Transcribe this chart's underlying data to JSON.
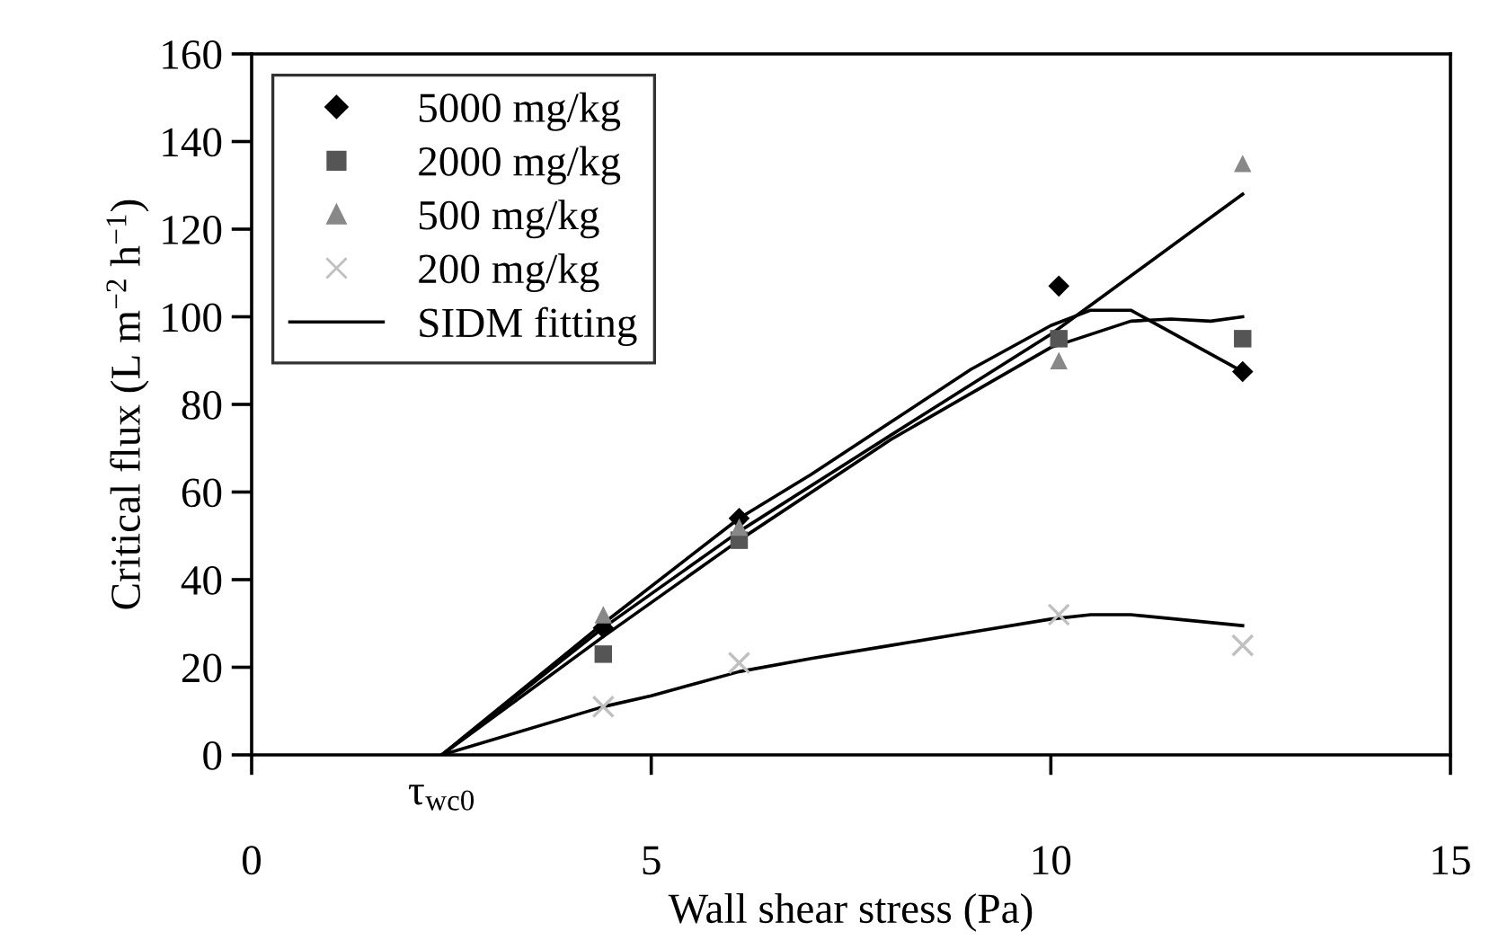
{
  "chart_data": {
    "type": "scatter",
    "xlabel": "Wall shear stress (Pa)",
    "ylabel": "Critical flux (L m$^{−2}$ h$^{−1}$)",
    "xlim": [
      0,
      15
    ],
    "xticks": [
      0,
      5,
      10,
      15
    ],
    "ylim": [
      0,
      160
    ],
    "yticks": [
      0,
      20,
      40,
      60,
      80,
      100,
      120,
      140,
      160
    ],
    "grid": false,
    "legend": "top left",
    "annotations": [
      {
        "text": "τ$_{wc0}$",
        "x": 2.38,
        "y": 0
      }
    ],
    "series": [
      {
        "name": "5000 mg/kg",
        "marker": "diamond",
        "color": "#000000",
        "x": [
          4.4,
          6.1,
          10.1,
          12.4
        ],
        "values": [
          29,
          54,
          107,
          87.5
        ]
      },
      {
        "name": "2000 mg/kg",
        "marker": "square",
        "color": "#555555",
        "x": [
          4.4,
          6.1,
          10.1,
          12.4
        ],
        "values": [
          23,
          49,
          95,
          95
        ]
      },
      {
        "name": "500 mg/kg",
        "marker": "triangle",
        "color": "#888888",
        "x": [
          4.4,
          6.1,
          10.1,
          12.4
        ],
        "values": [
          32,
          52,
          90,
          135
        ]
      },
      {
        "name": "200 mg/kg",
        "marker": "cross",
        "color": "#c0c0c0",
        "x": [
          4.4,
          6.1,
          10.1,
          12.4
        ],
        "values": [
          11,
          21,
          32,
          25
        ]
      },
      {
        "name": "SIDM fitting",
        "type": "line",
        "marker": "none",
        "color": "#000000",
        "x": [
          2.38,
          4.4,
          6.1,
          7,
          8,
          9,
          10,
          10.5,
          11,
          12.4
        ],
        "values": [
          0,
          30,
          54,
          64,
          76,
          88,
          98,
          101.5,
          101.5,
          87.5
        ]
      },
      {
        "type": "line",
        "marker": "none",
        "color": "#000000",
        "x": [
          2.38,
          4.4,
          6.1,
          8,
          10,
          11,
          11.5,
          12,
          12.4
        ],
        "values": [
          0,
          27,
          49,
          72,
          93,
          99,
          99.5,
          99,
          100
        ]
      },
      {
        "type": "line",
        "marker": "none",
        "color": "#000000",
        "x": [
          2.38,
          4.4,
          6.1,
          8,
          10,
          12.4
        ],
        "values": [
          0,
          29,
          51,
          73,
          96,
          128
        ]
      },
      {
        "type": "line",
        "marker": "none",
        "color": "#000000",
        "x": [
          2.38,
          4.4,
          5,
          5.5,
          6.1,
          7,
          8,
          9,
          10,
          10.5,
          11,
          12.4
        ],
        "values": [
          0,
          11,
          13.5,
          16,
          19,
          22,
          25,
          28,
          31,
          32,
          32,
          29.5
        ]
      }
    ]
  }
}
